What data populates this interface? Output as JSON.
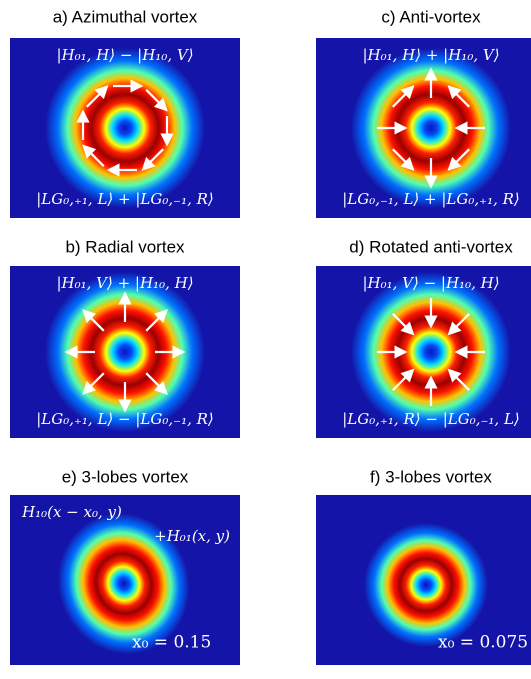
{
  "panels": [
    {
      "title": "a) Azimuthal vortex",
      "top": "|H₀₁, H⟩ − |H₁₀, V⟩",
      "bottom": "|LG₀,₊₁, L⟩ + |LG₀,₋₁, R⟩"
    },
    {
      "title": "c) Anti-vortex",
      "top": "|H₀₁, H⟩ + |H₁₀, V⟩",
      "bottom": "|LG₀,₋₁, L⟩ + |LG₀,₊₁, R⟩"
    },
    {
      "title": "b) Radial vortex",
      "top": "|H₀₁, V⟩ + |H₁₀, H⟩",
      "bottom": "|LG₀,₊₁, L⟩ − |LG₀,₋₁, R⟩"
    },
    {
      "title": "d) Rotated anti-vortex",
      "top": "|H₀₁, V⟩ − |H₁₀, H⟩",
      "bottom": "|LG₀,₊₁, R⟩ − |LG₀,₋₁, L⟩"
    },
    {
      "title": "e) 3-lobes vortex",
      "top": "H₁₀(x − x₀, y)",
      "top2": "+H₀₁(x, y)",
      "bottom": "x₀ = 0.15"
    },
    {
      "title": "f) 3-lobes vortex",
      "bottom": "x₀ = 0.075"
    }
  ]
}
